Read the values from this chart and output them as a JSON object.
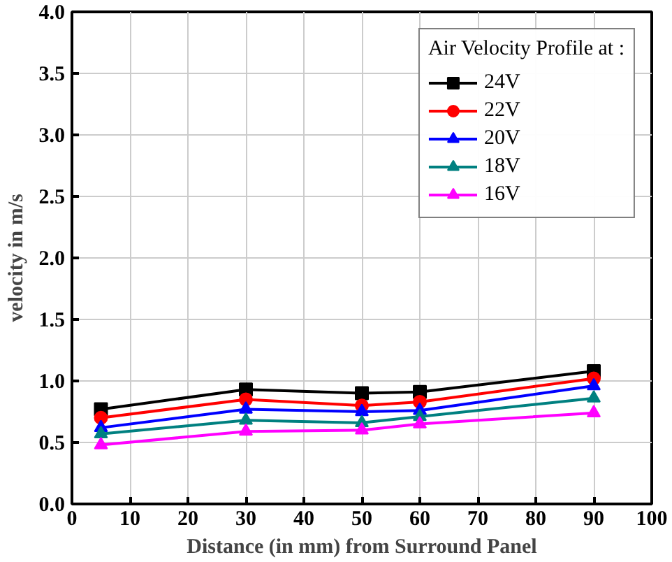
{
  "chart_data": {
    "type": "line",
    "xlabel": "Distance (in mm) from Surround Panel",
    "ylabel": "velocity in m/s",
    "legend_title": "Air Velocity Profile at :",
    "legend": "top right",
    "grid": true,
    "x": [
      5,
      30,
      50,
      60,
      90
    ],
    "xlim": [
      0,
      100
    ],
    "xticks": [
      0,
      10,
      20,
      30,
      40,
      50,
      60,
      70,
      80,
      90,
      100
    ],
    "ylim": [
      0,
      4.0
    ],
    "yticks": [
      {
        "value": 0,
        "label": "0.0"
      },
      0.5,
      {
        "value": 1,
        "label": "1.0"
      },
      1.5,
      {
        "value": 2,
        "label": "2.0"
      },
      2.5,
      {
        "value": 3,
        "label": "3.0"
      },
      3.5,
      {
        "value": 4,
        "label": "4.0"
      }
    ],
    "series": [
      {
        "name": "24V",
        "color": "#000000",
        "marker": "square",
        "values": [
          0.77,
          0.93,
          0.9,
          0.91,
          1.08
        ]
      },
      {
        "name": "22V",
        "color": "#ff0000",
        "marker": "circle",
        "values": [
          0.7,
          0.85,
          0.8,
          0.83,
          1.02
        ]
      },
      {
        "name": "20V",
        "color": "#0000ff",
        "marker": "triangle",
        "values": [
          0.62,
          0.77,
          0.75,
          0.76,
          0.96
        ]
      },
      {
        "name": "18V",
        "color": "#008080",
        "marker": "triangle",
        "values": [
          0.57,
          0.68,
          0.66,
          0.71,
          0.86
        ]
      },
      {
        "name": "16V",
        "color": "#ff00ff",
        "marker": "triangle",
        "values": [
          0.48,
          0.59,
          0.6,
          0.65,
          0.74
        ]
      }
    ]
  }
}
